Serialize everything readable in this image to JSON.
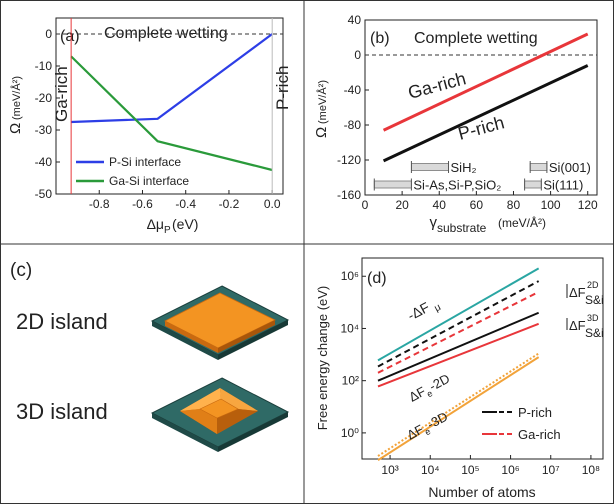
{
  "chart_data": [
    {
      "panel": "(a)",
      "type": "line",
      "annotation": "Complete wetting",
      "xlabel": "Δμ",
      "xlabel_sub": "P",
      "xlabel_unit": "(eV)",
      "ylabel": "Ω",
      "ylabel_unit": "(meV/Å²)",
      "xlim": [
        -1.0,
        0.05
      ],
      "ylim": [
        -50,
        5
      ],
      "xticks": [
        -0.8,
        -0.6,
        -0.4,
        -0.2,
        0.0
      ],
      "xtick_labels": [
        "-0.8",
        "-0.6",
        "-0.4",
        "-0.2",
        "0.0"
      ],
      "yticks": [
        -50,
        -40,
        -30,
        -20,
        -10,
        0
      ],
      "ytick_labels": [
        "-50",
        "-40",
        "-30",
        "-20",
        "-10",
        "0"
      ],
      "reference_line_y": 0,
      "region_labels": [
        {
          "text": "Ga-rich",
          "x": -0.93,
          "color": "#e8363a"
        },
        {
          "text": "P-rich",
          "x": 0.0,
          "color": "#111111"
        }
      ],
      "series": [
        {
          "name": "P-Si interface",
          "color": "#2d3ee6",
          "x": [
            -0.93,
            -0.53,
            0.0
          ],
          "y": [
            -27.5,
            -26.5,
            0.0
          ]
        },
        {
          "name": "Ga-Si interface",
          "color": "#2a9a3a",
          "x": [
            -0.93,
            -0.53,
            0.0
          ],
          "y": [
            -7.0,
            -33.5,
            -42.5
          ]
        }
      ],
      "legend_position": "bottom-left"
    },
    {
      "panel": "(b)",
      "type": "line",
      "annotation": "Complete wetting",
      "xlabel": "γ",
      "xlabel_sub": "substrate",
      "xlabel_unit": "(meV/Å²)",
      "ylabel": "Ω",
      "ylabel_unit": "(meV/Å²)",
      "xlim": [
        0,
        125
      ],
      "ylim": [
        -160,
        40
      ],
      "xticks": [
        0,
        20,
        40,
        60,
        80,
        100,
        120
      ],
      "xtick_labels": [
        "0",
        "20",
        "40",
        "60",
        "80",
        "100",
        "120"
      ],
      "yticks": [
        -160,
        -120,
        -80,
        -40,
        0,
        40
      ],
      "ytick_labels": [
        "-160",
        "-120",
        "-80",
        "-40",
        "0",
        "40"
      ],
      "reference_line_y": 0,
      "series": [
        {
          "name": "Ga-rich",
          "color": "#e8363a",
          "x": [
            10,
            120
          ],
          "y": [
            -86,
            24
          ]
        },
        {
          "name": "P-rich",
          "color": "#111111",
          "x": [
            10,
            120
          ],
          "y": [
            -121,
            -12
          ]
        }
      ],
      "ranges": [
        {
          "label": "SiH₂",
          "x": [
            25,
            45
          ],
          "y": -128
        },
        {
          "label": "Si-As,Si-P,SiO₂",
          "x": [
            5,
            25
          ],
          "y": -148
        },
        {
          "label": "Si(001)",
          "x": [
            89,
            98
          ],
          "y": -128
        },
        {
          "label": "Si(111)",
          "x": [
            86,
            95
          ],
          "y": -148
        }
      ]
    },
    {
      "panel": "(d)",
      "type": "line",
      "xlabel": "Number of atoms",
      "ylabel": "Free energy change (eV)",
      "x_scale": "log",
      "y_scale": "log",
      "xlim": [
        200,
        200000000
      ],
      "ylim": [
        0.1,
        5000000
      ],
      "xtick_labels": [
        "10³",
        "10⁴",
        "10⁵",
        "10⁶",
        "10⁷",
        "10⁸"
      ],
      "xtick_values": [
        1000,
        10000,
        100000,
        1000000,
        10000000,
        100000000
      ],
      "ytick_labels": [
        "10⁰",
        "10²",
        "10⁴",
        "10⁶"
      ],
      "ytick_values": [
        1,
        100,
        10000,
        1000000
      ],
      "series": [
        {
          "name": "-ΔFμ",
          "color": "#2aa6a3",
          "style": "solid",
          "x": [
            500,
            5000000
          ],
          "y": [
            600,
            2000000
          ]
        },
        {
          "name": "P-rich 2D",
          "color": "#111111",
          "style": "dash",
          "x": [
            500,
            5000000
          ],
          "y": [
            350,
            650000
          ]
        },
        {
          "name": "Ga-rich 2D",
          "color": "#e8363a",
          "style": "dash",
          "x": [
            500,
            5000000
          ],
          "y": [
            200,
            250000
          ]
        },
        {
          "name": "P-rich 3D",
          "color": "#111111",
          "style": "solid",
          "x": [
            500,
            5000000
          ],
          "y": [
            100,
            40000
          ]
        },
        {
          "name": "Ga-rich 3D",
          "color": "#e8363a",
          "style": "solid",
          "x": [
            500,
            5000000
          ],
          "y": [
            60,
            15000
          ]
        },
        {
          "name": "ΔFe-2D",
          "color": "#f2a33a",
          "style": "dot",
          "x": [
            500,
            5000000
          ],
          "y": [
            0.13,
            1100
          ]
        },
        {
          "name": "ΔFe-3D",
          "color": "#f2a33a",
          "style": "solid",
          "x": [
            500,
            5000000
          ],
          "y": [
            0.09,
            800
          ]
        }
      ],
      "labels": {
        "mu": "-ΔF",
        "mu_sub": "μ",
        "e2d": "ΔF",
        "e2d_sub": "e",
        "e2d_rest": "-2D",
        "e3d": "ΔF",
        "e3d_sub": "e",
        "e3d_rest": "-3D",
        "f2d": "ΔF",
        "f2d_sup": "2D",
        "f2d_sub": "S&i",
        "f3d": "ΔF",
        "f3d_sup": "3D",
        "f3d_sub": "S&i"
      },
      "legend": [
        {
          "text": "P-rich",
          "color": "#111111"
        },
        {
          "text": "Ga-rich",
          "color": "#e8363a"
        }
      ],
      "legend_position": "bottom-right"
    }
  ],
  "panel_c": {
    "label": "(c)",
    "island_2d": "2D island",
    "island_3d": "3D island",
    "colors": {
      "substrate": "#2f6a66",
      "substrate_edge": "#1b3f3c",
      "island": "#f39422",
      "island_dark": "#c96a10",
      "island_light": "#ffb24d"
    }
  }
}
